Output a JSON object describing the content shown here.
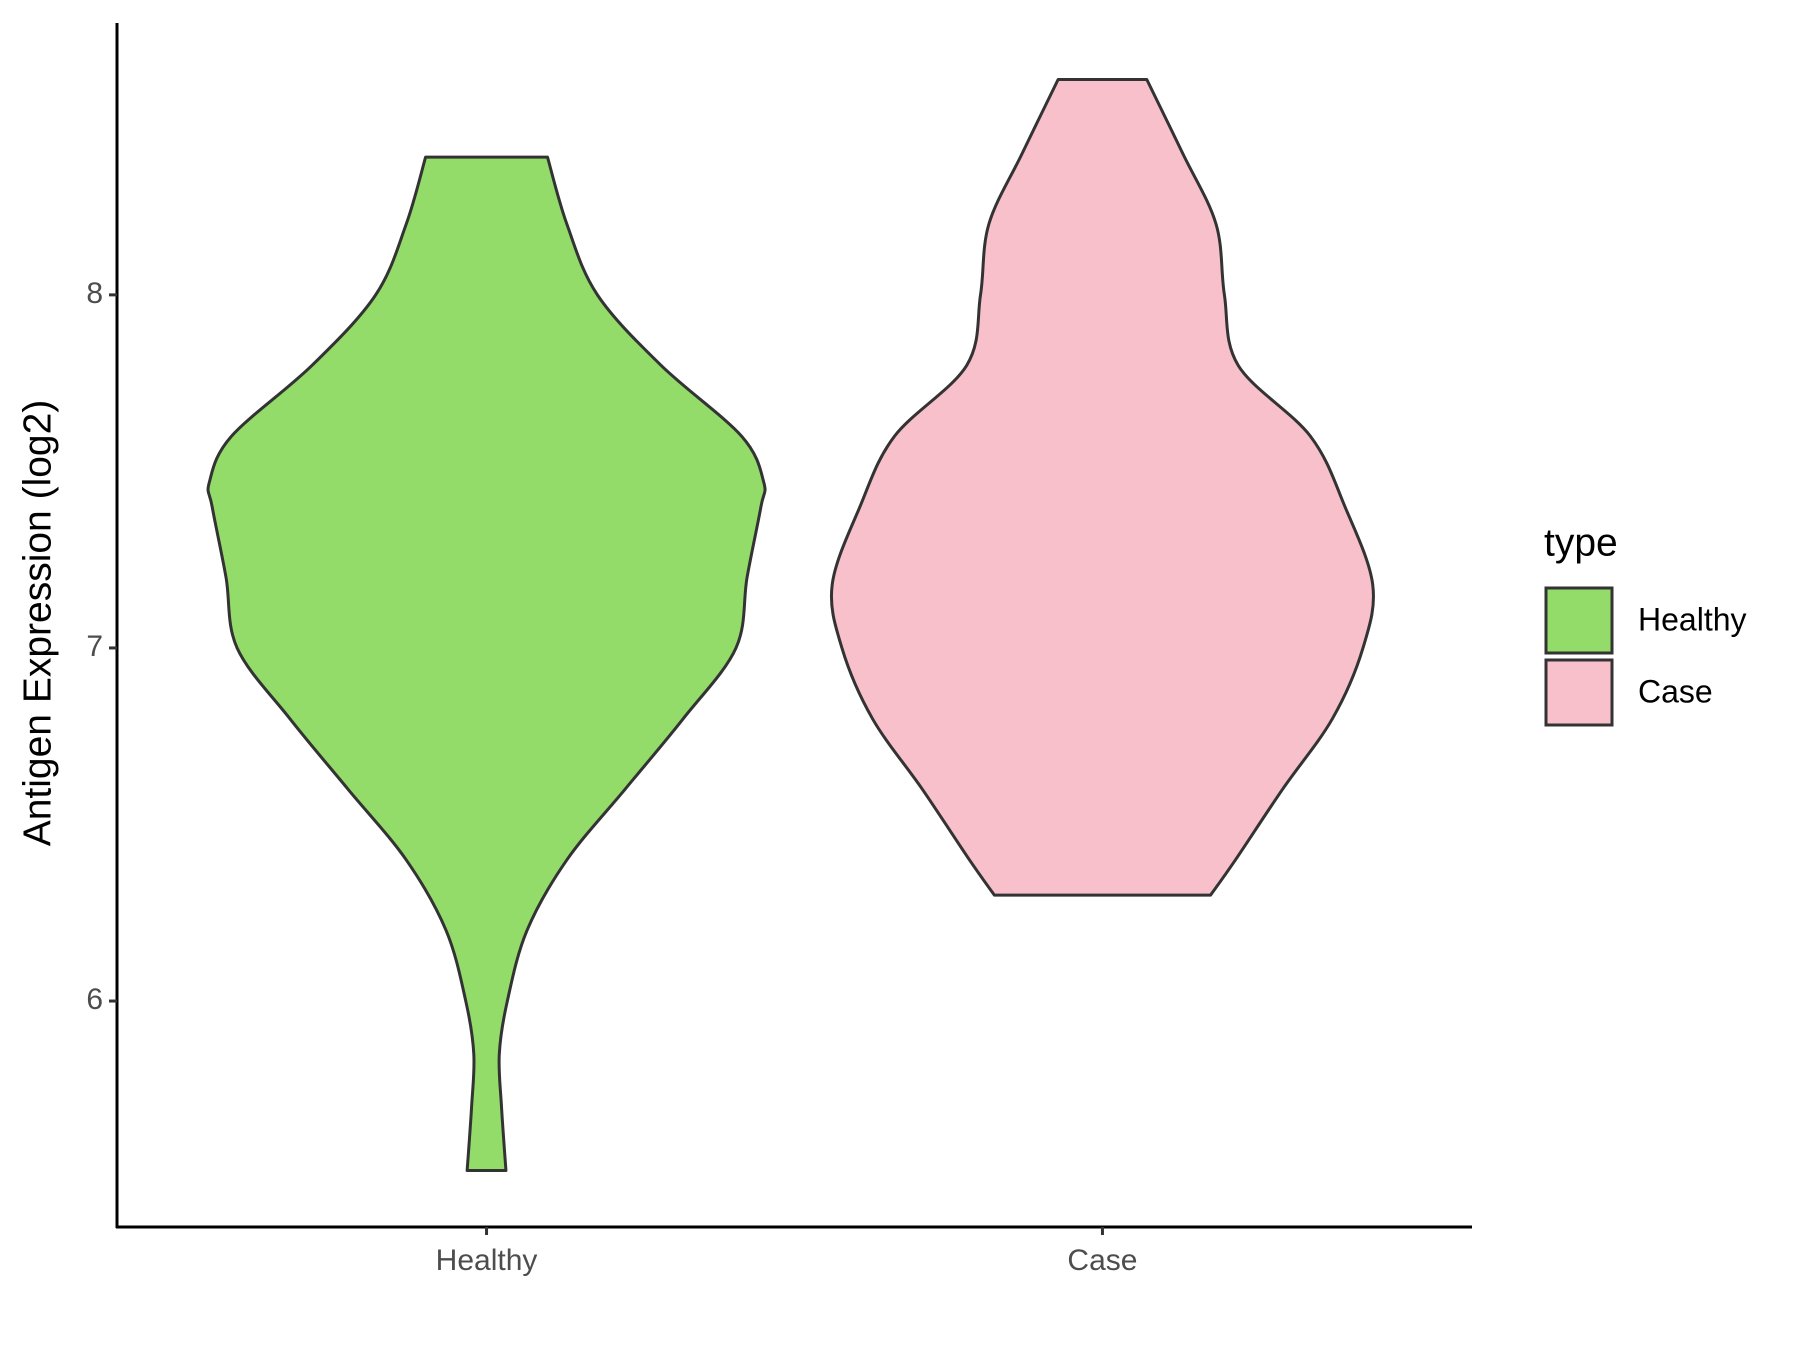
{
  "chart_data": {
    "type": "violin",
    "y_label": "Antigen Expression (log2)",
    "categories": [
      "Healthy",
      "Case"
    ],
    "legend_title": "type",
    "ylim": [
      5.36,
      8.77
    ],
    "yticks": [
      6,
      7,
      8
    ],
    "series": [
      {
        "name": "Healthy",
        "color": "#93dc6a",
        "y": [
          5.52,
          5.7,
          5.85,
          6.0,
          6.2,
          6.4,
          6.6,
          6.8,
          7.0,
          7.2,
          7.4,
          7.47,
          7.6,
          7.8,
          8.0,
          8.2,
          8.39
        ],
        "density": [
          0.07,
          0.054,
          0.046,
          0.075,
          0.146,
          0.29,
          0.5,
          0.71,
          0.9,
          0.94,
          0.99,
          1,
          0.92,
          0.63,
          0.4,
          0.29,
          0.22
        ]
      },
      {
        "name": "Case",
        "color": "#f7c0cb",
        "y": [
          6.3,
          6.4,
          6.6,
          6.8,
          7.0,
          7.18,
          7.4,
          7.6,
          7.8,
          8.0,
          8.2,
          8.4,
          8.61
        ],
        "density": [
          0.39,
          0.48,
          0.65,
          0.83,
          0.94,
          0.975,
          0.875,
          0.75,
          0.49,
          0.44,
          0.41,
          0.29,
          0.16
        ]
      }
    ]
  }
}
